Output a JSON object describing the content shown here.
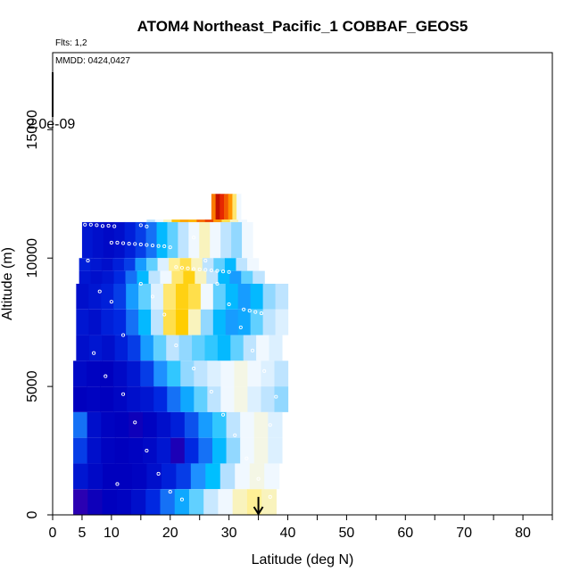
{
  "chart_data": {
    "type": "heatmap",
    "title": "ATOM4 Northeast_Pacific_1 COBBAF_GEOS5",
    "annotations": [
      "Flts: 1,2",
      "MMDD: 0424,0427"
    ],
    "colorbar_label": "2.0e-09",
    "xlabel": "Latitude (deg N)",
    "ylabel": "Altitude (m)",
    "xlim": [
      0,
      85
    ],
    "ylim": [
      0,
      18000
    ],
    "xticks": [
      0,
      5,
      10,
      20,
      30,
      40,
      50,
      60,
      70,
      80
    ],
    "yticks": [
      0,
      5000,
      10000,
      15000
    ],
    "arrow_marker": {
      "x": 35,
      "y_from": 700,
      "y_to": 0
    },
    "colors": {
      "low": "#0000cc",
      "mid": "#f0f8ff",
      "high": "#cc0000",
      "points": "#ffffff"
    },
    "legend_bar": {
      "y_from": 15200,
      "y_to": 17000
    },
    "rows": [
      {
        "alt_lo": 11500,
        "alt_hi": 12500,
        "x_start": 27,
        "x_end": 32,
        "values": [
          0.78,
          0.95,
          0.88,
          0.82,
          0.75,
          0.6,
          0.5
        ]
      },
      {
        "alt_lo": 11000,
        "alt_hi": 11500,
        "x_start": 16,
        "x_end": 33,
        "values": [
          0.45,
          0.5,
          0.55,
          0.68,
          0.72,
          0.7,
          0.8,
          0.85,
          0.75,
          0.62,
          0.55,
          0.5
        ]
      },
      {
        "alt_lo": 10000,
        "alt_hi": 11400,
        "x_start": 5,
        "x_end": 34,
        "values": [
          0.12,
          0.1,
          0.08,
          0.1,
          0.15,
          0.2,
          0.25,
          0.35,
          0.4,
          0.45,
          0.5,
          0.55,
          0.5,
          0.45,
          0.42,
          0.5
        ]
      },
      {
        "alt_lo": 9500,
        "alt_hi": 10000,
        "x_start": 4.5,
        "x_end": 35,
        "values": [
          0.15,
          0.12,
          0.1,
          0.15,
          0.2,
          0.3,
          0.4,
          0.48,
          0.58,
          0.62,
          0.55,
          0.45,
          0.4,
          0.35,
          0.45,
          0.5
        ]
      },
      {
        "alt_lo": 9000,
        "alt_hi": 9500,
        "x_start": 4.5,
        "x_end": 36,
        "values": [
          0.12,
          0.1,
          0.12,
          0.18,
          0.25,
          0.35,
          0.45,
          0.5,
          0.6,
          0.65,
          0.55,
          0.45,
          0.35,
          0.3,
          0.4,
          0.45
        ]
      },
      {
        "alt_lo": 8000,
        "alt_hi": 9000,
        "x_start": 4,
        "x_end": 40,
        "values": [
          0.1,
          0.12,
          0.15,
          0.2,
          0.3,
          0.4,
          0.48,
          0.6,
          0.65,
          0.62,
          0.5,
          0.4,
          0.35,
          0.3,
          0.35,
          0.42,
          0.45
        ]
      },
      {
        "alt_lo": 7000,
        "alt_hi": 8000,
        "x_start": 4,
        "x_end": 40,
        "values": [
          0.12,
          0.1,
          0.15,
          0.18,
          0.25,
          0.35,
          0.45,
          0.62,
          0.66,
          0.55,
          0.42,
          0.35,
          0.3,
          0.32,
          0.4,
          0.45,
          0.48
        ]
      },
      {
        "alt_lo": 6000,
        "alt_hi": 7000,
        "x_start": 4,
        "x_end": 39,
        "values": [
          0.1,
          0.12,
          0.1,
          0.15,
          0.2,
          0.3,
          0.4,
          0.45,
          0.42,
          0.4,
          0.38,
          0.35,
          0.4,
          0.45,
          0.5,
          0.48
        ]
      },
      {
        "alt_lo": 5000,
        "alt_hi": 6000,
        "x_start": 3.5,
        "x_end": 40,
        "values": [
          0.08,
          0.06,
          0.05,
          0.08,
          0.12,
          0.2,
          0.28,
          0.38,
          0.42,
          0.45,
          0.48,
          0.5,
          0.52,
          0.5,
          0.48,
          0.45
        ]
      },
      {
        "alt_lo": 4000,
        "alt_hi": 5000,
        "x_start": 3.5,
        "x_end": 40,
        "values": [
          0.05,
          0.06,
          0.05,
          0.07,
          0.1,
          0.12,
          0.18,
          0.25,
          0.32,
          0.4,
          0.45,
          0.5,
          0.52,
          0.48,
          0.45,
          0.42
        ]
      },
      {
        "alt_lo": 3000,
        "alt_hi": 4000,
        "x_start": 3.5,
        "x_end": 39,
        "values": [
          0.25,
          0.1,
          0.06,
          0.05,
          0.04,
          0.06,
          0.1,
          0.15,
          0.22,
          0.3,
          0.38,
          0.45,
          0.5,
          0.52,
          0.48
        ]
      },
      {
        "alt_lo": 2000,
        "alt_hi": 3000,
        "x_start": 3.5,
        "x_end": 39,
        "values": [
          0.2,
          0.1,
          0.06,
          0.05,
          0.06,
          0.08,
          0.12,
          0.03,
          0.18,
          0.25,
          0.35,
          0.42,
          0.5,
          0.52,
          0.48
        ]
      },
      {
        "alt_lo": 1000,
        "alt_hi": 2000,
        "x_start": 3.5,
        "x_end": 38.5,
        "values": [
          0.12,
          0.08,
          0.05,
          0.05,
          0.06,
          0.1,
          0.15,
          0.2,
          0.28,
          0.36,
          0.44,
          0.5,
          0.52,
          0.5
        ]
      },
      {
        "alt_lo": 0,
        "alt_hi": 1000,
        "x_start": 3.5,
        "x_end": 38,
        "values": [
          0.02,
          0.04,
          0.05,
          0.06,
          0.1,
          0.18,
          0.25,
          0.32,
          0.4,
          0.46,
          0.5,
          0.55,
          0.58,
          0.55
        ]
      }
    ],
    "points": [
      [
        5.5,
        11300
      ],
      [
        6.5,
        11300
      ],
      [
        7.5,
        11280
      ],
      [
        8.5,
        11250
      ],
      [
        9.5,
        11260
      ],
      [
        10.5,
        11240
      ],
      [
        15,
        11280
      ],
      [
        16,
        11230
      ],
      [
        10,
        10600
      ],
      [
        11,
        10600
      ],
      [
        12,
        10580
      ],
      [
        13,
        10560
      ],
      [
        14,
        10550
      ],
      [
        15,
        10530
      ],
      [
        16,
        10510
      ],
      [
        17,
        10490
      ],
      [
        18,
        10470
      ],
      [
        19,
        10460
      ],
      [
        20,
        10420
      ],
      [
        21,
        9650
      ],
      [
        22,
        9620
      ],
      [
        23,
        9600
      ],
      [
        24,
        9570
      ],
      [
        25,
        9560
      ],
      [
        26,
        9540
      ],
      [
        27,
        9520
      ],
      [
        28,
        9500
      ],
      [
        29,
        9480
      ],
      [
        30,
        9460
      ],
      [
        32.5,
        8000
      ],
      [
        33.5,
        7950
      ],
      [
        34.5,
        7900
      ],
      [
        35.5,
        7850
      ],
      [
        6,
        9900
      ],
      [
        8,
        8700
      ],
      [
        10,
        8300
      ],
      [
        12,
        7000
      ],
      [
        7,
        6300
      ],
      [
        9,
        5400
      ],
      [
        12,
        4700
      ],
      [
        14,
        3600
      ],
      [
        16,
        2500
      ],
      [
        18,
        1600
      ],
      [
        20,
        900
      ],
      [
        22,
        600
      ],
      [
        11,
        1200
      ],
      [
        15,
        9000
      ],
      [
        17,
        8500
      ],
      [
        19,
        7800
      ],
      [
        21,
        6600
      ],
      [
        24,
        5700
      ],
      [
        27,
        4800
      ],
      [
        29,
        3900
      ],
      [
        31,
        3100
      ],
      [
        33,
        2200
      ],
      [
        35,
        1400
      ],
      [
        37,
        700
      ],
      [
        24,
        10800
      ],
      [
        26,
        9900
      ],
      [
        28,
        9000
      ],
      [
        30,
        8200
      ],
      [
        32,
        7300
      ],
      [
        34,
        6400
      ],
      [
        36,
        5600
      ],
      [
        38,
        4600
      ],
      [
        37,
        3500
      ]
    ]
  }
}
